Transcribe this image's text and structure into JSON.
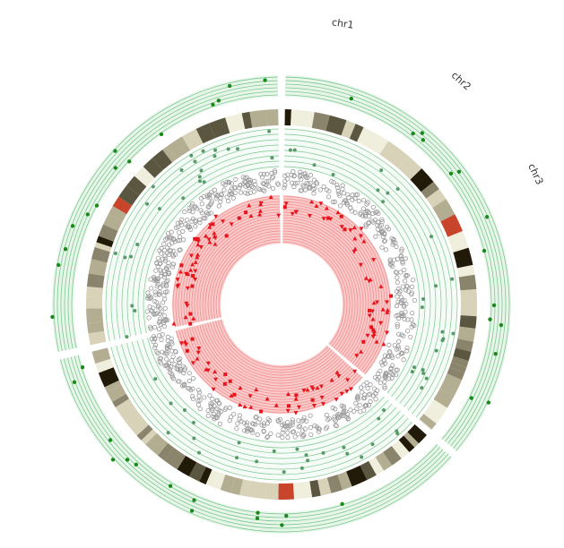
{
  "chart_data": {
    "type": "circos",
    "segments": [
      {
        "name": "chr1",
        "start_deg": 1,
        "end_deg": 130,
        "centromere_deg": 64
      },
      {
        "name": "chr2",
        "start_deg": 132,
        "end_deg": 256,
        "centromere_deg": 178
      },
      {
        "name": "chr3",
        "start_deg": 258,
        "end_deg": 359,
        "centromere_deg": 303
      }
    ],
    "tracks": [
      {
        "kind": "scatter",
        "position": "outer",
        "color": "#1a8a1a",
        "background": "#d8f0dc",
        "line_color": "#7cc890"
      },
      {
        "kind": "ideogram",
        "band_colors": [
          "#f0eedd",
          "#d7d2b8",
          "#b3ad92",
          "#8a846c",
          "#5a5640",
          "#221a08"
        ],
        "centromere_color": "#c8442a"
      },
      {
        "kind": "scatter",
        "position": "middle",
        "color": "#5a9a6a",
        "line_color": "#7cc890"
      },
      {
        "kind": "scatter",
        "position": "grey",
        "color": "#999999"
      },
      {
        "kind": "scatter",
        "position": "inner",
        "color": "#e8141c",
        "markers": [
          "triangle-up",
          "triangle-down",
          "square"
        ]
      },
      {
        "kind": "area",
        "position": "innermost",
        "color": "#f26a6a"
      }
    ],
    "colors": {
      "red": "#e8141c",
      "green": "#1a8a1a",
      "grey": "#999999"
    }
  },
  "labels": {
    "chr1": "chr1",
    "chr2": "chr2",
    "chr3": "chr3"
  }
}
